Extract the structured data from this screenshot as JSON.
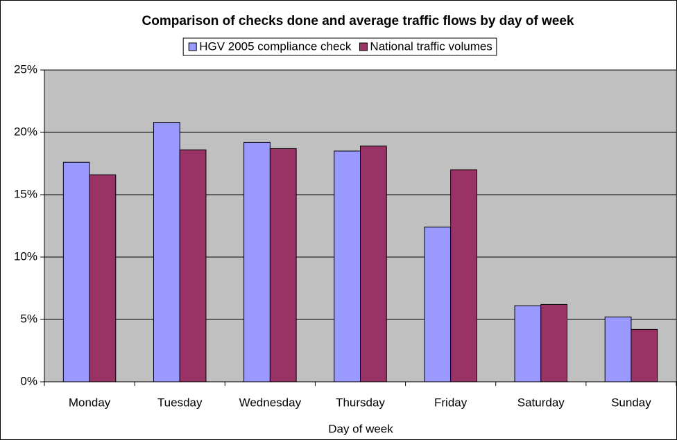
{
  "chart_data": {
    "type": "bar",
    "title": "Comparison of checks done and average traffic flows by day of week",
    "x_label": "Day of week",
    "categories": [
      "Monday",
      "Tuesday",
      "Wednesday",
      "Thursday",
      "Friday",
      "Saturday",
      "Sunday"
    ],
    "series": [
      {
        "name": "HGV 2005 compliance check",
        "color": "#9999ff",
        "values": [
          17.6,
          20.8,
          19.2,
          18.5,
          12.4,
          6.1,
          5.2
        ]
      },
      {
        "name": "National traffic volumes",
        "color": "#993366",
        "values": [
          16.6,
          18.6,
          18.7,
          18.9,
          17.0,
          6.2,
          4.2
        ]
      }
    ],
    "ylim": [
      0,
      25
    ],
    "yticks": [
      {
        "value": 0,
        "label": "0%"
      },
      {
        "value": 5,
        "label": "5%"
      },
      {
        "value": 10,
        "label": "10%"
      },
      {
        "value": 15,
        "label": "15%"
      },
      {
        "value": 20,
        "label": "20%"
      },
      {
        "value": 25,
        "label": "25%"
      }
    ],
    "grid": true,
    "legend": "top"
  }
}
